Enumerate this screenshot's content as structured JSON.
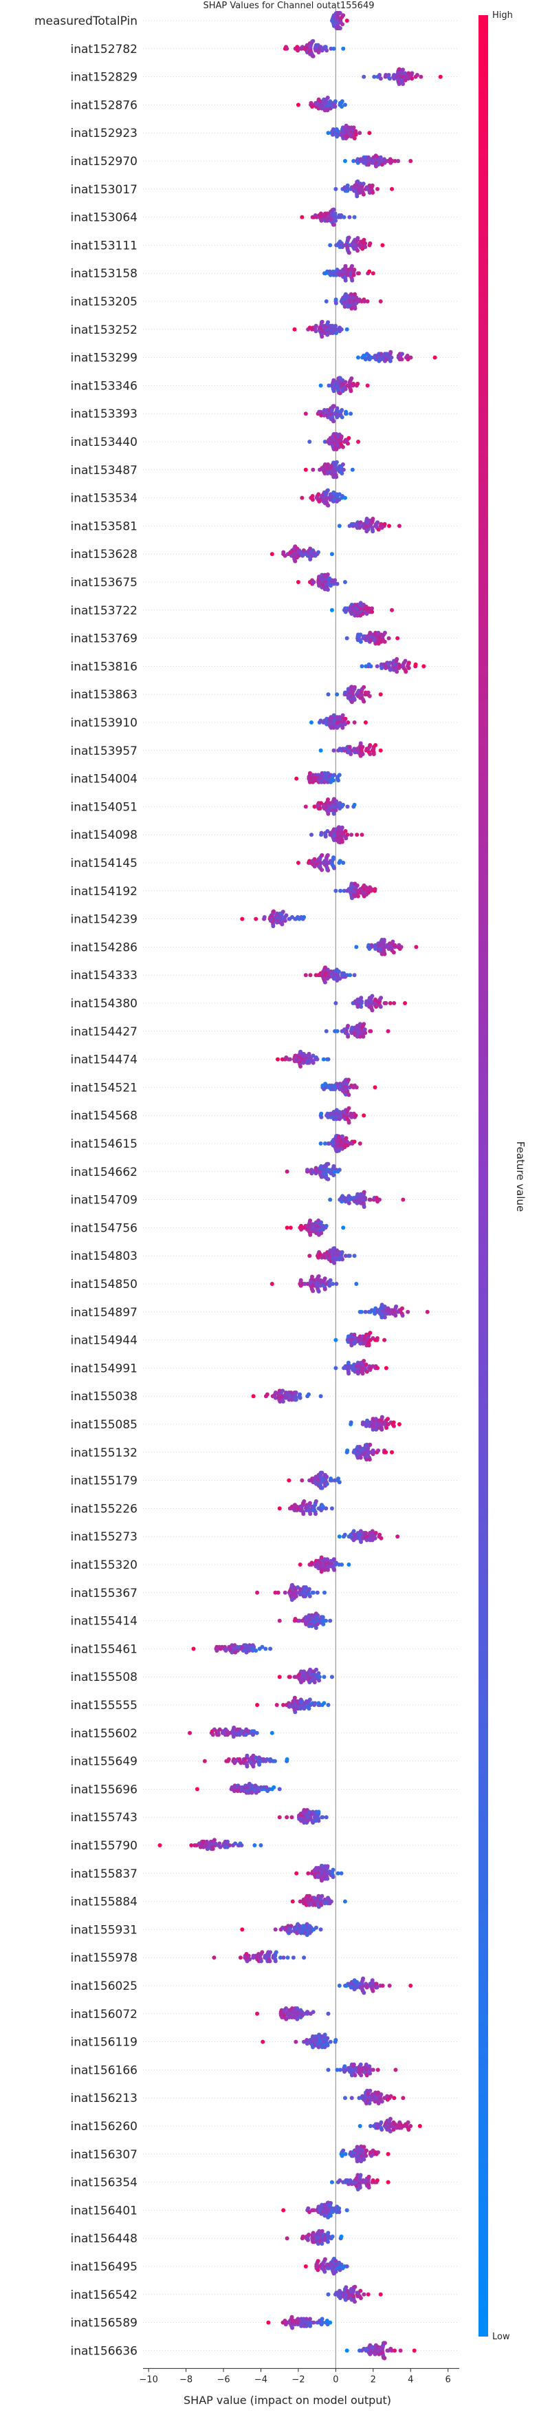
{
  "chart_data": {
    "type": "scatter",
    "subtype": "shap-beeswarm",
    "title": "SHAP Values for Channel outat155649",
    "xlabel": "SHAP value (impact on model output)",
    "xlim": [
      -10.3,
      6.6
    ],
    "xticks": [
      -10,
      -8,
      -6,
      -4,
      -2,
      0,
      2,
      4,
      6
    ],
    "colorbar": {
      "label": "Feature value",
      "high": "High",
      "low": "Low",
      "low_color": "#008afb",
      "high_color": "#ff0052"
    },
    "features": [
      {
        "name": "measuredTotalPin",
        "center": 0.1,
        "spread": 0.25,
        "min": -0.2,
        "max": 0.6
      },
      {
        "name": "inat152782",
        "center": -1.2,
        "spread": 0.9,
        "min": -2.7,
        "max": 0.4
      },
      {
        "name": "inat152829",
        "center": 3.2,
        "spread": 1.1,
        "min": 1.5,
        "max": 5.6
      },
      {
        "name": "inat152876",
        "center": -0.5,
        "spread": 0.8,
        "min": -2.0,
        "max": 0.5
      },
      {
        "name": "inat152923",
        "center": 0.5,
        "spread": 0.7,
        "min": -0.4,
        "max": 1.8
      },
      {
        "name": "inat152970",
        "center": 2.0,
        "spread": 1.0,
        "min": 0.5,
        "max": 4.0
      },
      {
        "name": "inat153017",
        "center": 1.3,
        "spread": 0.9,
        "min": 0.0,
        "max": 3.0
      },
      {
        "name": "inat153064",
        "center": -0.2,
        "spread": 0.9,
        "min": -1.8,
        "max": 1.0
      },
      {
        "name": "inat153111",
        "center": 1.0,
        "spread": 0.8,
        "min": -0.3,
        "max": 2.5
      },
      {
        "name": "inat153158",
        "center": 0.5,
        "spread": 0.8,
        "min": -0.6,
        "max": 2.0
      },
      {
        "name": "inat153205",
        "center": 0.8,
        "spread": 0.8,
        "min": -0.5,
        "max": 2.4
      },
      {
        "name": "inat153252",
        "center": -0.5,
        "spread": 0.8,
        "min": -2.2,
        "max": 0.6
      },
      {
        "name": "inat153299",
        "center": 2.8,
        "spread": 1.1,
        "min": 1.2,
        "max": 5.3
      },
      {
        "name": "inat153346",
        "center": 0.4,
        "spread": 0.7,
        "min": -0.8,
        "max": 1.7
      },
      {
        "name": "inat153393",
        "center": -0.2,
        "spread": 0.7,
        "min": -1.6,
        "max": 0.8
      },
      {
        "name": "inat153440",
        "center": 0.0,
        "spread": 0.7,
        "min": -1.4,
        "max": 1.2
      },
      {
        "name": "inat153487",
        "center": -0.3,
        "spread": 0.7,
        "min": -1.6,
        "max": 0.9
      },
      {
        "name": "inat153534",
        "center": -0.4,
        "spread": 0.7,
        "min": -1.8,
        "max": 0.5
      },
      {
        "name": "inat153581",
        "center": 1.7,
        "spread": 0.9,
        "min": 0.2,
        "max": 3.4
      },
      {
        "name": "inat153628",
        "center": -1.8,
        "spread": 0.9,
        "min": -3.4,
        "max": -0.2
      },
      {
        "name": "inat153675",
        "center": -0.6,
        "spread": 0.7,
        "min": -2.0,
        "max": 0.5
      },
      {
        "name": "inat153722",
        "center": 1.2,
        "spread": 0.8,
        "min": -0.2,
        "max": 3.0
      },
      {
        "name": "inat153769",
        "center": 2.0,
        "spread": 0.8,
        "min": 0.6,
        "max": 3.3
      },
      {
        "name": "inat153816",
        "center": 3.0,
        "spread": 1.0,
        "min": 1.4,
        "max": 4.7
      },
      {
        "name": "inat153863",
        "center": 1.0,
        "spread": 0.8,
        "min": -0.4,
        "max": 2.4
      },
      {
        "name": "inat153910",
        "center": 0.1,
        "spread": 0.8,
        "min": -1.3,
        "max": 1.6
      },
      {
        "name": "inat153957",
        "center": 1.2,
        "spread": 0.9,
        "min": -0.8,
        "max": 2.4
      },
      {
        "name": "inat154004",
        "center": -0.8,
        "spread": 0.8,
        "min": -2.1,
        "max": 0.2
      },
      {
        "name": "inat154051",
        "center": -0.2,
        "spread": 0.8,
        "min": -1.6,
        "max": 1.0
      },
      {
        "name": "inat154098",
        "center": 0.1,
        "spread": 0.8,
        "min": -1.3,
        "max": 1.4
      },
      {
        "name": "inat154145",
        "center": -0.6,
        "spread": 0.7,
        "min": -2.0,
        "max": 0.4
      },
      {
        "name": "inat154192",
        "center": 1.2,
        "spread": 0.7,
        "min": 0.0,
        "max": 2.1
      },
      {
        "name": "inat154239",
        "center": -3.0,
        "spread": 1.0,
        "min": -5.0,
        "max": -1.7
      },
      {
        "name": "inat154286",
        "center": 2.6,
        "spread": 0.9,
        "min": 1.1,
        "max": 4.3
      },
      {
        "name": "inat154333",
        "center": -0.2,
        "spread": 0.8,
        "min": -1.6,
        "max": 1.0
      },
      {
        "name": "inat154380",
        "center": 1.8,
        "spread": 0.9,
        "min": 0.0,
        "max": 3.7
      },
      {
        "name": "inat154427",
        "center": 1.0,
        "spread": 0.9,
        "min": -0.5,
        "max": 2.8
      },
      {
        "name": "inat154474",
        "center": -1.8,
        "spread": 0.9,
        "min": -3.1,
        "max": -0.4
      },
      {
        "name": "inat154521",
        "center": 0.3,
        "spread": 0.8,
        "min": -0.7,
        "max": 2.1
      },
      {
        "name": "inat154568",
        "center": 0.2,
        "spread": 0.8,
        "min": -0.8,
        "max": 1.5
      },
      {
        "name": "inat154615",
        "center": 0.3,
        "spread": 0.7,
        "min": -0.8,
        "max": 1.3
      },
      {
        "name": "inat154662",
        "center": -0.7,
        "spread": 0.7,
        "min": -2.6,
        "max": 0.2
      },
      {
        "name": "inat154709",
        "center": 1.4,
        "spread": 1.0,
        "min": -0.3,
        "max": 3.6
      },
      {
        "name": "inat154756",
        "center": -1.2,
        "spread": 0.8,
        "min": -2.6,
        "max": 0.4
      },
      {
        "name": "inat154803",
        "center": -0.2,
        "spread": 0.8,
        "min": -1.4,
        "max": 1.0
      },
      {
        "name": "inat154850",
        "center": -1.0,
        "spread": 0.9,
        "min": -3.4,
        "max": 1.1
      },
      {
        "name": "inat154897",
        "center": 2.7,
        "spread": 1.0,
        "min": 1.3,
        "max": 4.9
      },
      {
        "name": "inat154944",
        "center": 1.3,
        "spread": 0.8,
        "min": 0.0,
        "max": 2.6
      },
      {
        "name": "inat154991",
        "center": 1.4,
        "spread": 0.8,
        "min": 0.0,
        "max": 2.7
      },
      {
        "name": "inat155038",
        "center": -2.6,
        "spread": 1.0,
        "min": -4.4,
        "max": -0.8
      },
      {
        "name": "inat155085",
        "center": 2.2,
        "spread": 0.9,
        "min": 0.8,
        "max": 3.4
      },
      {
        "name": "inat155132",
        "center": 1.6,
        "spread": 0.8,
        "min": 0.6,
        "max": 3.0
      },
      {
        "name": "inat155179",
        "center": -0.8,
        "spread": 0.8,
        "min": -2.5,
        "max": 0.2
      },
      {
        "name": "inat155226",
        "center": -1.4,
        "spread": 0.8,
        "min": -3.0,
        "max": -0.2
      },
      {
        "name": "inat155273",
        "center": 1.6,
        "spread": 0.9,
        "min": 0.2,
        "max": 3.3
      },
      {
        "name": "inat155320",
        "center": -0.6,
        "spread": 0.7,
        "min": -1.9,
        "max": 0.7
      },
      {
        "name": "inat155367",
        "center": -2.0,
        "spread": 0.9,
        "min": -4.2,
        "max": -0.6
      },
      {
        "name": "inat155414",
        "center": -1.4,
        "spread": 0.8,
        "min": -3.0,
        "max": -0.3
      },
      {
        "name": "inat155461",
        "center": -5.2,
        "spread": 1.2,
        "min": -7.6,
        "max": -3.5
      },
      {
        "name": "inat155508",
        "center": -1.6,
        "spread": 0.8,
        "min": -3.0,
        "max": -0.2
      },
      {
        "name": "inat155555",
        "center": -1.8,
        "spread": 0.9,
        "min": -4.2,
        "max": -0.4
      },
      {
        "name": "inat155602",
        "center": -5.5,
        "spread": 1.2,
        "min": -7.8,
        "max": -3.4
      },
      {
        "name": "inat155649",
        "center": -4.5,
        "spread": 1.2,
        "min": -7.0,
        "max": -2.6
      },
      {
        "name": "inat155696",
        "center": -4.6,
        "spread": 1.1,
        "min": -7.4,
        "max": -3.0
      },
      {
        "name": "inat155743",
        "center": -1.5,
        "spread": 0.8,
        "min": -3.0,
        "max": -0.5
      },
      {
        "name": "inat155790",
        "center": -6.3,
        "spread": 1.3,
        "min": -9.4,
        "max": -4.0
      },
      {
        "name": "inat155837",
        "center": -0.7,
        "spread": 0.8,
        "min": -2.1,
        "max": 0.3
      },
      {
        "name": "inat155884",
        "center": -1.0,
        "spread": 0.8,
        "min": -2.3,
        "max": 0.5
      },
      {
        "name": "inat155931",
        "center": -2.0,
        "spread": 0.9,
        "min": -5.0,
        "max": -0.8
      },
      {
        "name": "inat155978",
        "center": -3.8,
        "spread": 1.1,
        "min": -6.5,
        "max": -1.7
      },
      {
        "name": "inat156025",
        "center": 1.5,
        "spread": 1.0,
        "min": 0.2,
        "max": 4.0
      },
      {
        "name": "inat156072",
        "center": -2.2,
        "spread": 0.9,
        "min": -4.2,
        "max": -0.4
      },
      {
        "name": "inat156119",
        "center": -0.9,
        "spread": 0.8,
        "min": -3.9,
        "max": 0.0
      },
      {
        "name": "inat156166",
        "center": 1.2,
        "spread": 0.9,
        "min": -0.4,
        "max": 3.2
      },
      {
        "name": "inat156213",
        "center": 2.0,
        "spread": 0.9,
        "min": 0.5,
        "max": 3.6
      },
      {
        "name": "inat156260",
        "center": 3.0,
        "spread": 1.0,
        "min": 1.3,
        "max": 4.5
      },
      {
        "name": "inat156307",
        "center": 1.3,
        "spread": 0.8,
        "min": 0.3,
        "max": 2.8
      },
      {
        "name": "inat156354",
        "center": 1.2,
        "spread": 0.9,
        "min": -0.2,
        "max": 2.8
      },
      {
        "name": "inat156401",
        "center": -0.6,
        "spread": 0.8,
        "min": -2.8,
        "max": 0.6
      },
      {
        "name": "inat156448",
        "center": -1.0,
        "spread": 0.8,
        "min": -2.6,
        "max": 0.3
      },
      {
        "name": "inat156495",
        "center": -0.3,
        "spread": 0.7,
        "min": -1.6,
        "max": 0.6
      },
      {
        "name": "inat156542",
        "center": 0.8,
        "spread": 0.8,
        "min": -0.4,
        "max": 2.4
      },
      {
        "name": "inat156589",
        "center": -1.8,
        "spread": 0.9,
        "min": -3.6,
        "max": -0.3
      },
      {
        "name": "inat156636",
        "center": 2.3,
        "spread": 1.0,
        "min": 0.6,
        "max": 4.2
      }
    ]
  }
}
